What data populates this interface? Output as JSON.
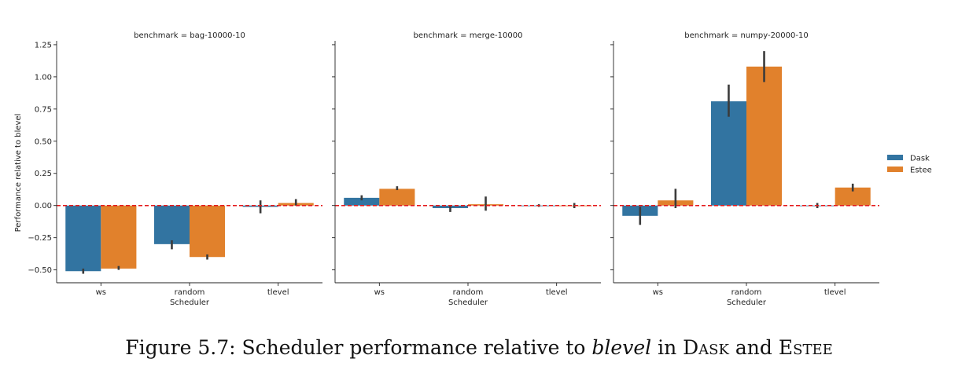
{
  "chart_data": {
    "type": "bar",
    "ylabel": "Performance relative to blevel",
    "xlabel": "Scheduler",
    "categories": [
      "ws",
      "random",
      "tlevel"
    ],
    "ylim": [
      -0.6,
      1.28
    ],
    "yticks": [
      -0.5,
      -0.25,
      0.0,
      0.25,
      0.5,
      0.75,
      1.0,
      1.25
    ],
    "ytick_labels": [
      "−0.50",
      "−0.25",
      "0.00",
      "0.25",
      "0.50",
      "0.75",
      "1.00",
      "1.25"
    ],
    "reference_line": {
      "y": 0,
      "color": "#e41a1c",
      "style": "dashed"
    },
    "legend": {
      "placement": "right",
      "entries": [
        "Dask",
        "Estee"
      ]
    },
    "colors": {
      "Dask": "#3274a1",
      "Estee": "#e1812c"
    },
    "panels": [
      {
        "title": "benchmark = bag-10000-10",
        "show_xlabel": true,
        "series": [
          {
            "name": "Dask",
            "values": [
              -0.51,
              -0.3,
              -0.01
            ],
            "err": [
              [
                -0.53,
                -0.49
              ],
              [
                -0.34,
                -0.27
              ],
              [
                -0.06,
                0.04
              ]
            ]
          },
          {
            "name": "Estee",
            "values": [
              -0.49,
              -0.4,
              0.02
            ],
            "err": [
              [
                -0.5,
                -0.47
              ],
              [
                -0.42,
                -0.38
              ],
              [
                0.0,
                0.05
              ]
            ]
          }
        ]
      },
      {
        "title": "benchmark = merge-10000",
        "show_xlabel": true,
        "series": [
          {
            "name": "Dask",
            "values": [
              0.06,
              -0.02,
              0.0
            ],
            "err": [
              [
                0.04,
                0.08
              ],
              [
                -0.05,
                0.0
              ],
              [
                -0.01,
                0.01
              ]
            ]
          },
          {
            "name": "Estee",
            "values": [
              0.13,
              0.01,
              0.0
            ],
            "err": [
              [
                0.12,
                0.15
              ],
              [
                -0.04,
                0.07
              ],
              [
                -0.02,
                0.02
              ]
            ]
          }
        ]
      },
      {
        "title": "benchmark = numpy-20000-10",
        "show_xlabel": true,
        "series": [
          {
            "name": "Dask",
            "values": [
              -0.08,
              0.81,
              0.0
            ],
            "err": [
              [
                -0.15,
                -0.01
              ],
              [
                0.69,
                0.94
              ],
              [
                -0.02,
                0.02
              ]
            ]
          },
          {
            "name": "Estee",
            "values": [
              0.04,
              1.08,
              0.14
            ],
            "err": [
              [
                -0.02,
                0.13
              ],
              [
                0.96,
                1.2
              ],
              [
                0.11,
                0.17
              ]
            ]
          }
        ]
      }
    ]
  },
  "caption": {
    "prefix": "Figure 5.7: Scheduler performance relative to ",
    "italic": "blevel",
    "middle": " in ",
    "sc1": "Dask",
    "and": " and ",
    "sc2": "Estee"
  }
}
